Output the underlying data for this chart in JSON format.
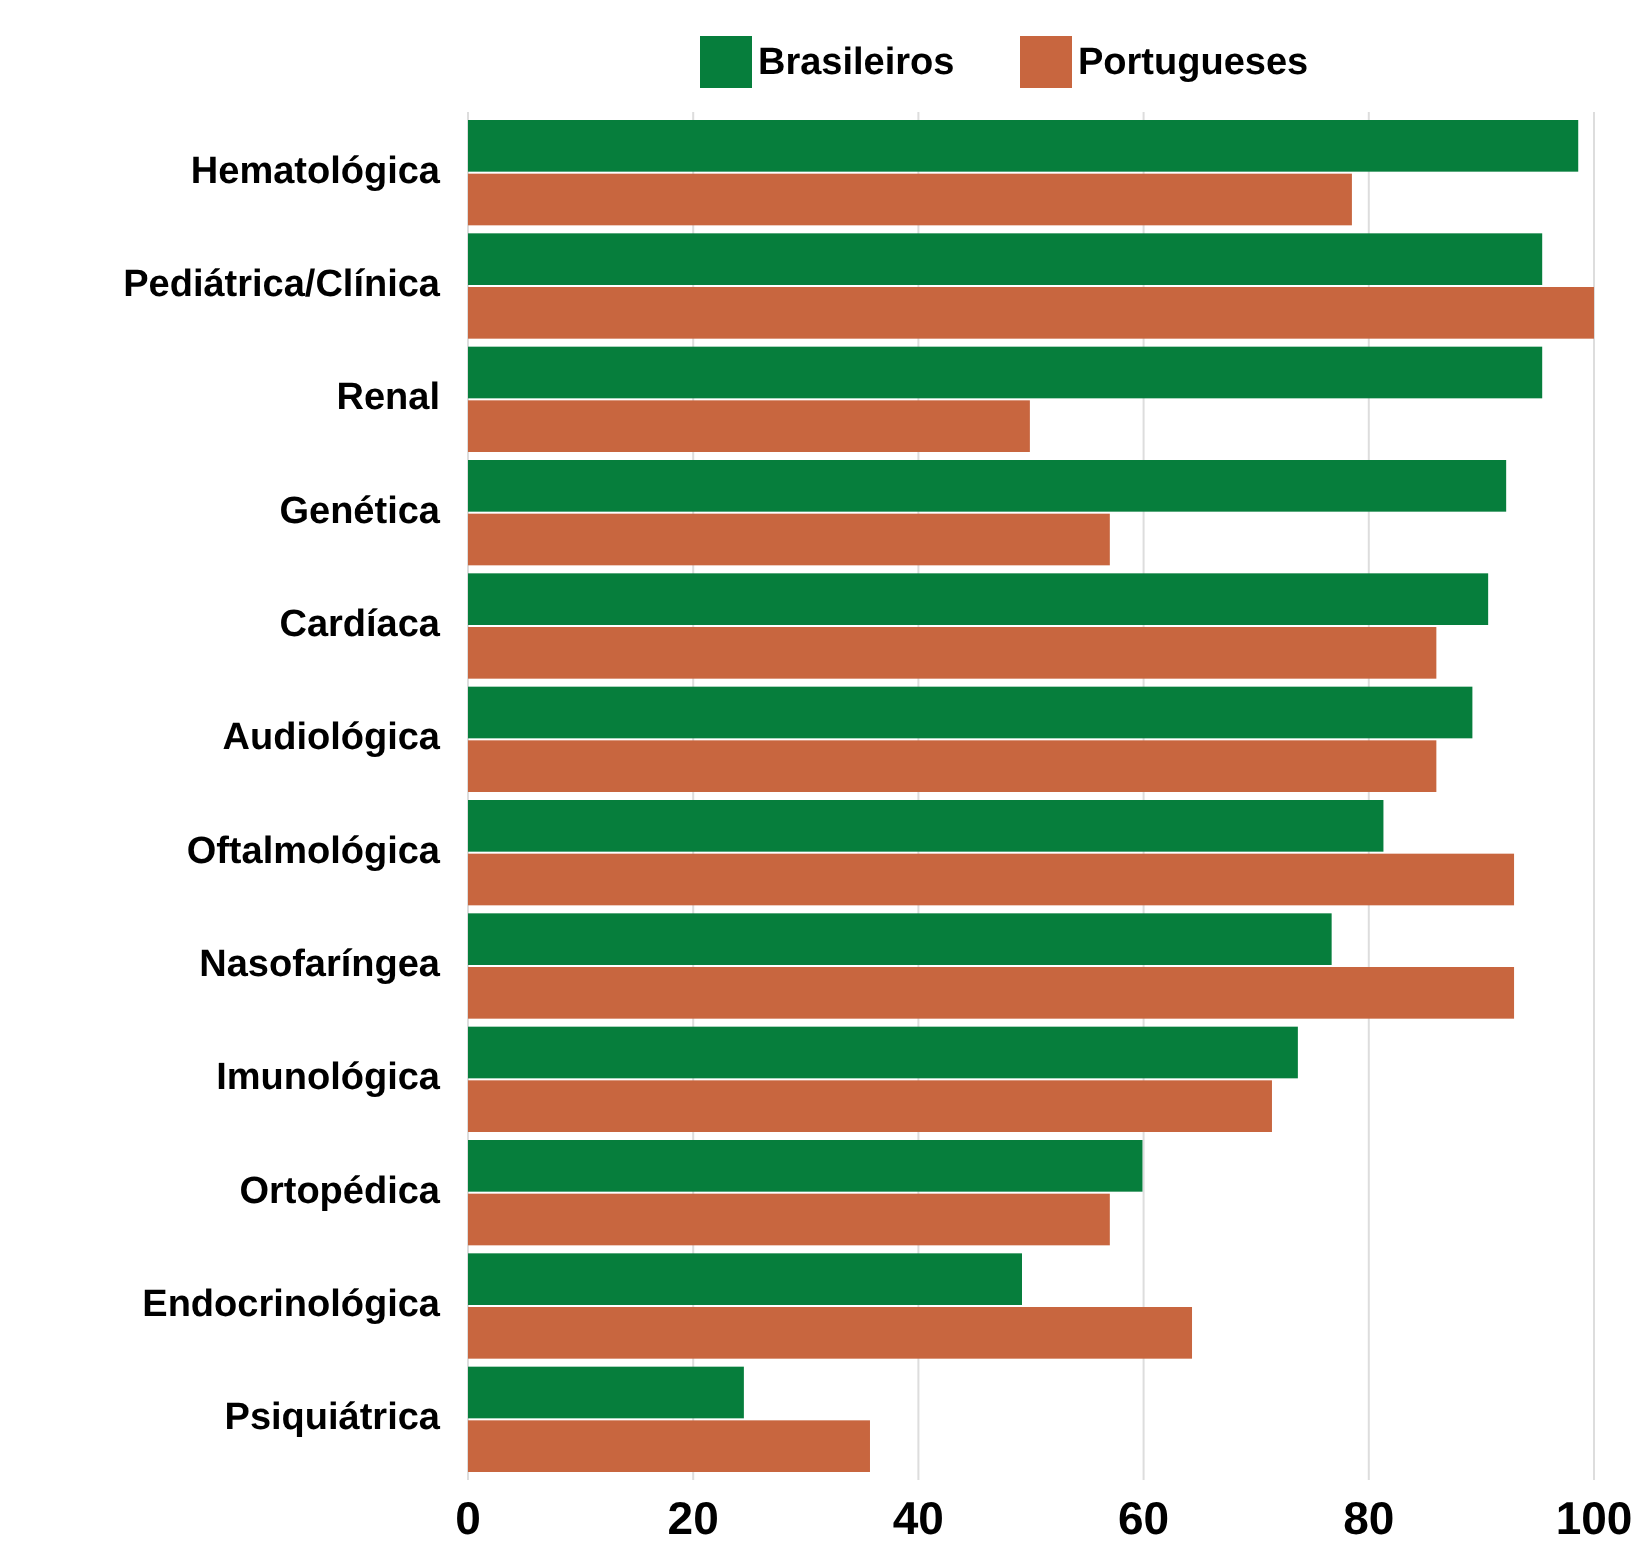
{
  "chart_data": {
    "type": "bar",
    "orientation": "horizontal",
    "categories": [
      "Hematológica",
      "Pediátrica/Clínica",
      "Renal",
      "Genética",
      "Cardíaca",
      "Audiológica",
      "Oftalmológica",
      "Nasofaríngea",
      "Imunológica",
      "Ortopédica",
      "Endocrinológica",
      "Psiquiátrica"
    ],
    "series": [
      {
        "name": "Brasileiros",
        "color": "#067e3c",
        "values": [
          98.6,
          95.4,
          95.4,
          92.2,
          90.6,
          89.2,
          81.3,
          76.7,
          73.7,
          59.9,
          49.2,
          24.5
        ]
      },
      {
        "name": "Portugueses",
        "color": "#c8663f",
        "values": [
          78.5,
          100,
          49.9,
          57,
          86,
          86,
          92.9,
          92.9,
          71.4,
          57,
          64.3,
          35.7
        ]
      }
    ],
    "xlim": [
      0,
      100
    ],
    "xticks": [
      0,
      20,
      40,
      60,
      80,
      100
    ],
    "grid": "x",
    "legend": "top"
  }
}
